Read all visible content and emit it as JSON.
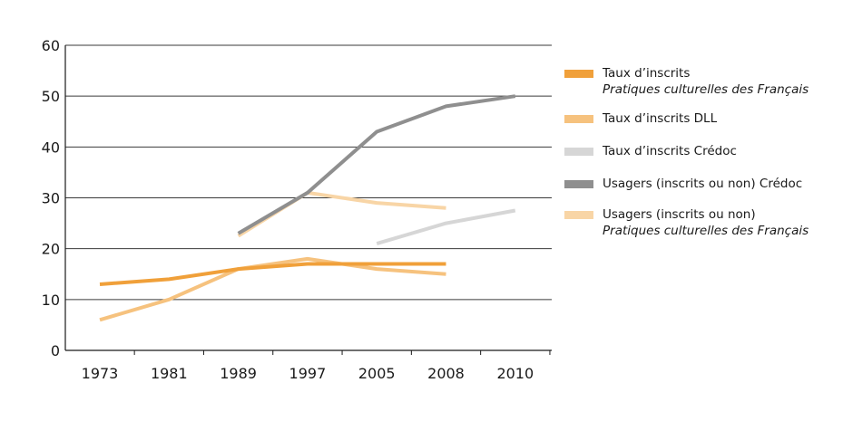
{
  "chart_data": {
    "type": "line",
    "categories": [
      "1973",
      "1981",
      "1989",
      "1997",
      "2005",
      "2008",
      "2010"
    ],
    "y_ticks": [
      "0",
      "10",
      "20",
      "30",
      "40",
      "50",
      "60"
    ],
    "ylim": [
      0,
      60
    ],
    "grid": true,
    "legend_position": "right",
    "title": "",
    "xlabel": "",
    "ylabel": "",
    "series": [
      {
        "name": "Taux d’inscrits",
        "subtitle": "Pratiques culturelles des Français",
        "color": "#f0a03a",
        "points": [
          [
            "1973",
            13
          ],
          [
            "1981",
            14
          ],
          [
            "1989",
            16
          ],
          [
            "1997",
            17
          ],
          [
            "2005",
            17
          ],
          [
            "2008",
            17
          ]
        ]
      },
      {
        "name": "Taux d’inscrits DLL",
        "subtitle": "",
        "color": "#f6c27e",
        "points": [
          [
            "1973",
            6
          ],
          [
            "1981",
            10
          ],
          [
            "1989",
            16
          ],
          [
            "1997",
            18
          ],
          [
            "2005",
            16
          ],
          [
            "2008",
            15
          ]
        ]
      },
      {
        "name": "Taux d’inscrits Crédoc",
        "subtitle": "",
        "color": "#d6d6d6",
        "points": [
          [
            "2005",
            21
          ],
          [
            "2008",
            25
          ],
          [
            "2010",
            27.5
          ]
        ]
      },
      {
        "name": "Usagers (inscrits ou non) Crédoc",
        "subtitle": "",
        "color": "#8f8f8f",
        "points": [
          [
            "1989",
            23
          ],
          [
            "1997",
            31
          ],
          [
            "2001",
            37
          ],
          [
            "2005",
            43
          ],
          [
            "2008",
            48
          ],
          [
            "2010",
            50
          ]
        ]
      },
      {
        "name": "Usagers (inscrits ou non)",
        "subtitle": "Pratiques culturelles des Français",
        "color": "#f8d5a6",
        "points": [
          [
            "1989",
            22.5
          ],
          [
            "1997",
            31
          ],
          [
            "2005",
            29
          ],
          [
            "2008",
            28
          ]
        ]
      }
    ]
  }
}
